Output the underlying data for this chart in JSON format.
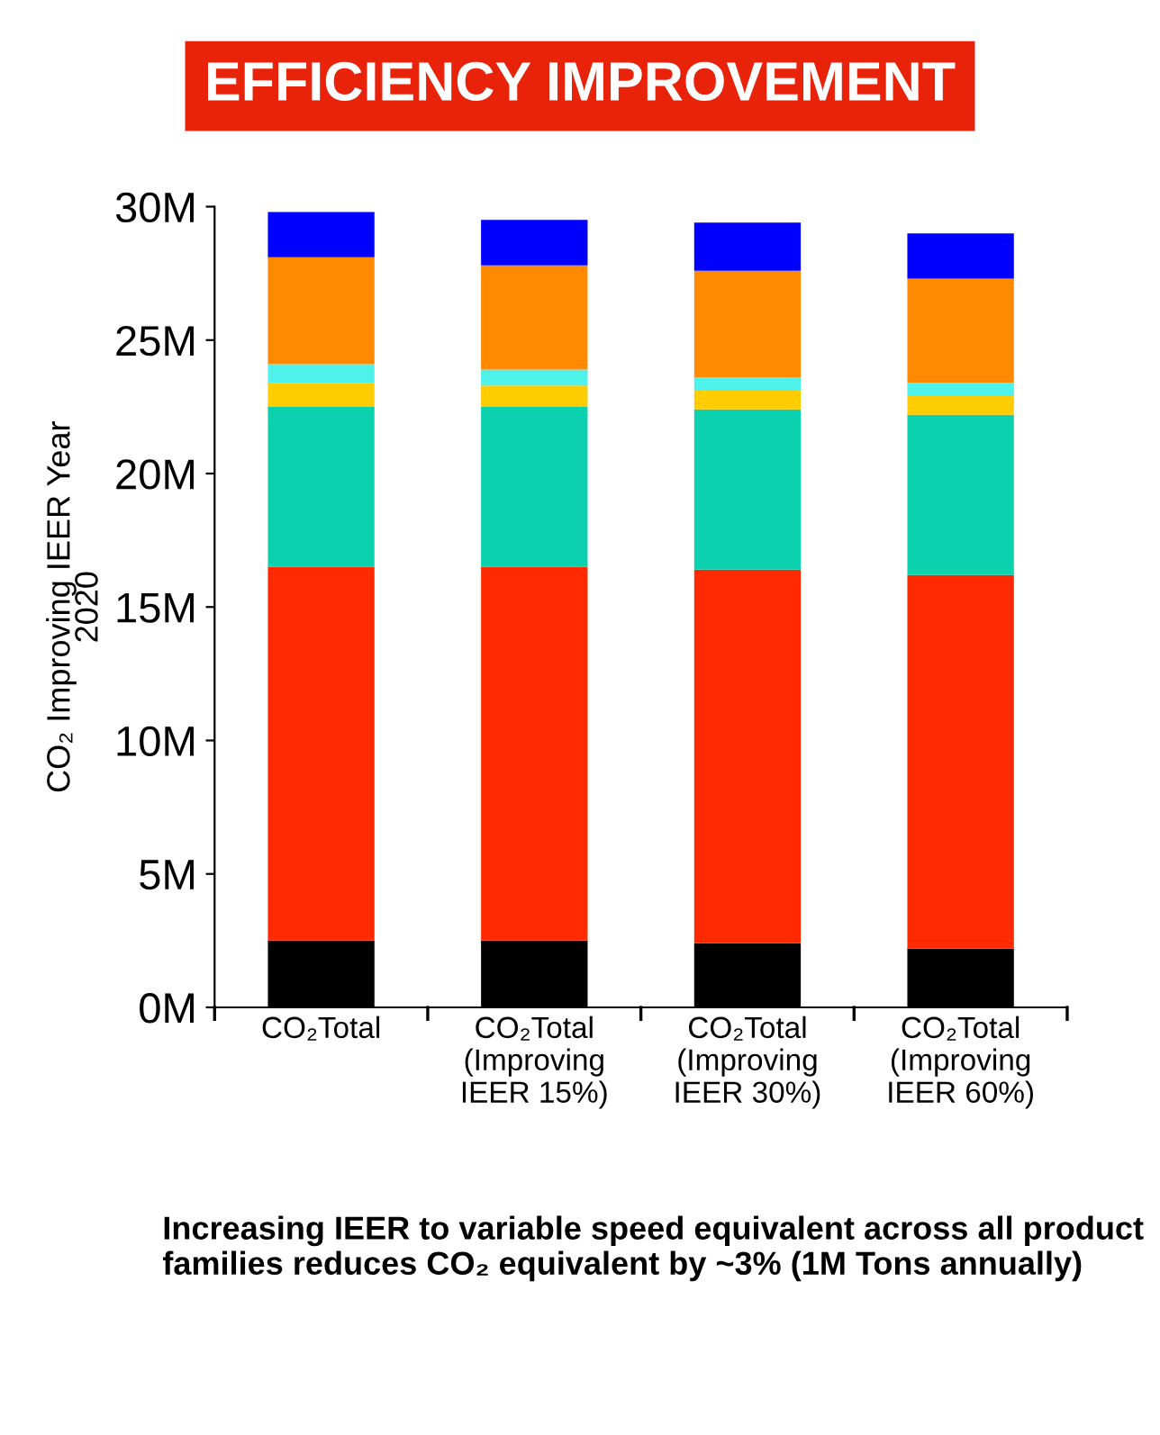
{
  "chart_data": {
    "type": "bar",
    "stacked": true,
    "title": "EFFICIENCY IMPROVEMENT",
    "ylabel": "CO₂ Improving IEER Year\n2020",
    "categories": [
      "CO₂Total",
      "CO₂Total\n(Improving\nIEER 15%)",
      "CO₂Total\n(Improving\nIEER 30%)",
      "CO₂Total\n(Improving\nIEER 60%)"
    ],
    "series": [
      {
        "color": "#000000",
        "values": [
          2500000,
          2500000,
          2400000,
          2200000
        ]
      },
      {
        "color": "#ff2a00",
        "values": [
          14000000,
          14000000,
          14000000,
          14000000
        ]
      },
      {
        "color": "#0cd1af",
        "values": [
          6000000,
          6000000,
          6000000,
          6000000
        ]
      },
      {
        "color": "#ffcc00",
        "values": [
          900000,
          800000,
          700000,
          700000
        ]
      },
      {
        "color": "#4ff2ea",
        "values": [
          700000,
          600000,
          500000,
          500000
        ]
      },
      {
        "color": "#ff8a00",
        "values": [
          4000000,
          3900000,
          4000000,
          3900000
        ]
      },
      {
        "color": "#0000ff",
        "values": [
          1700000,
          1700000,
          1800000,
          1700000
        ]
      }
    ],
    "ylim": [
      0,
      30000000
    ],
    "yticks": [
      {
        "value": 0,
        "label": "0M"
      },
      {
        "value": 5000000,
        "label": "5M"
      },
      {
        "value": 10000000,
        "label": "10M"
      },
      {
        "value": 15000000,
        "label": "15M"
      },
      {
        "value": 20000000,
        "label": "20M"
      },
      {
        "value": 25000000,
        "label": "25M"
      },
      {
        "value": 30000000,
        "label": "30M"
      }
    ],
    "annotations": [
      "Increasing IEER to variable speed equivalent across all product families reduces CO₂ equivalent by ~3% (1M Tons annually)"
    ]
  }
}
